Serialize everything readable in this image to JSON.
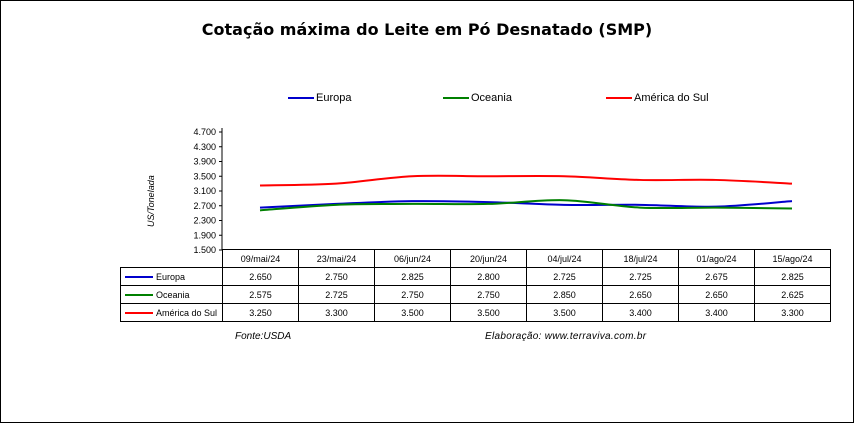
{
  "chart_data": {
    "type": "line",
    "title": "Cotação máxima do Leite em Pó Desnatado (SMP)",
    "ylabel": "US/Tonelada",
    "xlabel": "",
    "ylim": [
      1500,
      4700
    ],
    "yticks": [
      "4.700",
      "4.300",
      "3.900",
      "3.500",
      "3.100",
      "2.700",
      "2.300",
      "1.900",
      "1.500"
    ],
    "ytick_values": [
      4700,
      4300,
      3900,
      3500,
      3100,
      2700,
      2300,
      1900,
      1500
    ],
    "grid": false,
    "legend_position": "top",
    "categories": [
      "09/mai/24",
      "23/mai/24",
      "06/jun/24",
      "20/jun/24",
      "04/jul/24",
      "18/jul/24",
      "01/ago/24",
      "15/ago/24"
    ],
    "series": [
      {
        "name": "Europa",
        "color": "#0000cc",
        "values": [
          2650,
          2750,
          2825,
          2800,
          2725,
          2725,
          2675,
          2825
        ],
        "labels": [
          "2.650",
          "2.750",
          "2.825",
          "2.800",
          "2.725",
          "2.725",
          "2.675",
          "2.825"
        ]
      },
      {
        "name": "Oceania",
        "color": "#008000",
        "values": [
          2575,
          2725,
          2750,
          2750,
          2850,
          2650,
          2650,
          2625
        ],
        "labels": [
          "2.575",
          "2.725",
          "2.750",
          "2.750",
          "2.850",
          "2.650",
          "2.650",
          "2.625"
        ]
      },
      {
        "name": "América do Sul",
        "color": "#ff0000",
        "values": [
          3250,
          3300,
          3500,
          3500,
          3500,
          3400,
          3400,
          3300
        ],
        "labels": [
          "3.250",
          "3.300",
          "3.500",
          "3.500",
          "3.500",
          "3.400",
          "3.400",
          "3.300"
        ]
      }
    ]
  },
  "footer": {
    "source": "Fonte:USDA",
    "credit": "Elaboração:  www.terraviva.com.br"
  }
}
